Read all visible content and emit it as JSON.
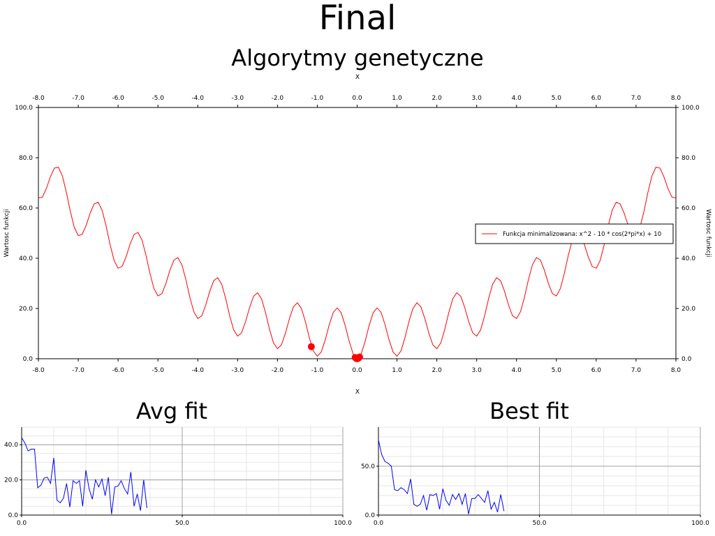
{
  "page": {
    "title": "Final"
  },
  "colors": {
    "function_line": "#ff0000",
    "points": "#ff0000",
    "fitness_line": "#0000ff",
    "grid_major": "#a0a0a0",
    "grid_minor": "#e6e6e6"
  },
  "chart_data": [
    {
      "id": "main",
      "type": "line",
      "title": "Algorytmy genetyczne",
      "xlabel": "X",
      "ylabel": "Wartosc funkcji",
      "xlim": [
        -8,
        8
      ],
      "ylim": [
        0,
        100
      ],
      "xticks": [
        "-8.0",
        "-7.0",
        "-6.0",
        "-5.0",
        "-4.0",
        "-3.0",
        "-2.0",
        "-1.0",
        "0.0",
        "1.0",
        "2.0",
        "3.0",
        "4.0",
        "5.0",
        "6.0",
        "7.0",
        "8.0"
      ],
      "yticks": [
        "0.0",
        "20.0",
        "40.0",
        "60.0",
        "80.0",
        "100.0"
      ],
      "grid": false,
      "legend": {
        "position": "right",
        "entries": [
          "Funkcja minimalizowana: x^2 - 10 * cos(2*pi*x) + 10"
        ]
      },
      "series": [
        {
          "name": "Funkcja minimalizowana: x^2 - 10 * cos(2*pi*x) + 10",
          "expression": "x^2 - 10 * cos(2*pi*x) + 10",
          "x_range": [
            -8,
            8
          ]
        }
      ],
      "points": [
        {
          "x": -1.15,
          "y": 4.8
        },
        {
          "x": -0.05,
          "y": 0.5
        },
        {
          "x": -0.02,
          "y": 0.1
        },
        {
          "x": 0.0,
          "y": 0.0
        },
        {
          "x": 0.03,
          "y": 0.2
        },
        {
          "x": 0.06,
          "y": 0.7
        }
      ]
    },
    {
      "id": "avg",
      "type": "line",
      "title": "Avg fit",
      "xlim": [
        0,
        100
      ],
      "ylim": [
        0,
        50
      ],
      "xticks": [
        "0.0",
        "50.0",
        "100.0"
      ],
      "yticks": [
        "0.0",
        "20.0",
        "40.0"
      ],
      "grid": true,
      "series": [
        {
          "x": [
            0,
            1,
            2,
            3,
            4,
            5,
            6,
            7,
            8,
            9,
            10,
            11,
            12,
            13,
            14,
            15,
            16,
            17,
            18,
            19,
            20,
            21,
            22,
            23,
            24,
            25,
            26,
            27,
            28,
            29,
            30,
            31,
            32,
            33,
            34,
            35,
            36,
            37,
            38,
            39
          ],
          "values": [
            44,
            41,
            36.5,
            37.5,
            37.5,
            15.5,
            17,
            21,
            21.5,
            18,
            32.5,
            8.5,
            7,
            9.5,
            18,
            4.5,
            19.5,
            18,
            19.5,
            5,
            25.5,
            15,
            9,
            20,
            16,
            20.5,
            11,
            21.5,
            0.5,
            16,
            16.5,
            19.5,
            15,
            12,
            24.5,
            5,
            12,
            2.5,
            20,
            4
          ]
        }
      ]
    },
    {
      "id": "best",
      "type": "line",
      "title": "Best fit",
      "xlim": [
        0,
        100
      ],
      "ylim": [
        0,
        90
      ],
      "xticks": [
        "0.0",
        "50.0",
        "100.0"
      ],
      "yticks": [
        "0.0",
        "50.0"
      ],
      "grid": true,
      "series": [
        {
          "x": [
            0,
            1,
            2,
            3,
            4,
            5,
            6,
            7,
            8,
            9,
            10,
            11,
            12,
            13,
            14,
            15,
            16,
            17,
            18,
            19,
            20,
            21,
            22,
            23,
            24,
            25,
            26,
            27,
            28,
            29,
            30,
            31,
            32,
            33,
            34,
            35,
            36,
            37,
            38,
            39
          ],
          "values": [
            77,
            62,
            55,
            53,
            50,
            26,
            25,
            28,
            26,
            22,
            37,
            11,
            9,
            11,
            20,
            5,
            21,
            20,
            22,
            6,
            27,
            15,
            10,
            21,
            16,
            22,
            11,
            22,
            1,
            17,
            17,
            21,
            17,
            13,
            25,
            6,
            13,
            3,
            21,
            4
          ]
        }
      ]
    }
  ]
}
